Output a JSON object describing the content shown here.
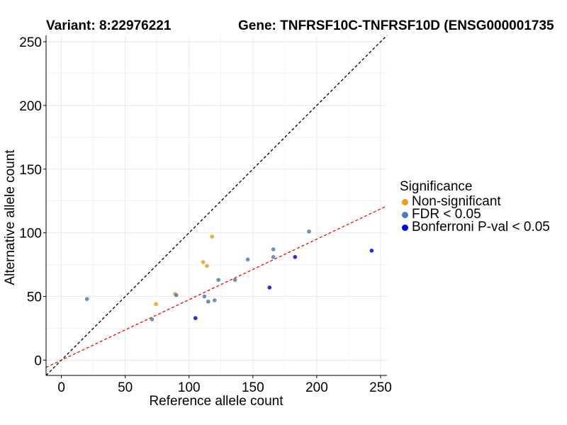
{
  "title": {
    "variant": "Variant: 8:22976221",
    "gene": "Gene: TNFRSF10C-TNFRSF10D (ENSG000001735"
  },
  "chart_data": {
    "type": "scatter",
    "xlabel": "Reference allele count",
    "ylabel": "Alternative allele count",
    "xlim": [
      -12,
      255
    ],
    "ylim": [
      -12,
      255
    ],
    "xticks": [
      "0",
      "50",
      "100",
      "150",
      "200",
      "250"
    ],
    "yticks": [
      "0",
      "50",
      "100",
      "150",
      "200",
      "250"
    ],
    "xtick_values": [
      0,
      50,
      100,
      150,
      200,
      250
    ],
    "ytick_values": [
      0,
      50,
      100,
      150,
      200,
      250
    ],
    "grid": true,
    "reference_lines": [
      {
        "name": "identity",
        "style": "dashed",
        "color": "#000000",
        "intercept": 0,
        "slope": 1
      },
      {
        "name": "fit",
        "style": "dashed",
        "color": "#ff0000",
        "intercept": 0,
        "slope": 0.475
      }
    ],
    "legend": {
      "title": "Significance",
      "placement": "right",
      "entries": [
        {
          "label": "Non-significant",
          "color": "#f39c12"
        },
        {
          "label": "FDR < 0.05",
          "color": "#4a7fb5"
        },
        {
          "label": "Bonferroni P-val < 0.05",
          "color": "#0000ff"
        }
      ]
    },
    "series": [
      {
        "name": "Non-significant",
        "color": "#f39c12",
        "points": [
          [
            74,
            44
          ],
          [
            89,
            52
          ],
          [
            111,
            77
          ],
          [
            114,
            74
          ],
          [
            118,
            97
          ]
        ]
      },
      {
        "name": "FDR < 0.05",
        "color": "#4a7fb5",
        "points": [
          [
            20,
            48
          ],
          [
            71,
            32
          ],
          [
            90,
            51
          ],
          [
            112,
            50
          ],
          [
            115,
            46
          ],
          [
            120,
            47
          ],
          [
            123,
            63
          ],
          [
            136,
            63
          ],
          [
            146,
            79
          ],
          [
            166,
            81
          ],
          [
            166,
            87
          ],
          [
            194,
            101
          ]
        ]
      },
      {
        "name": "Bonferroni P-val < 0.05",
        "color": "#0000ff",
        "points": [
          [
            105,
            33
          ],
          [
            163,
            57
          ],
          [
            183,
            81
          ],
          [
            243,
            86
          ]
        ]
      }
    ]
  }
}
